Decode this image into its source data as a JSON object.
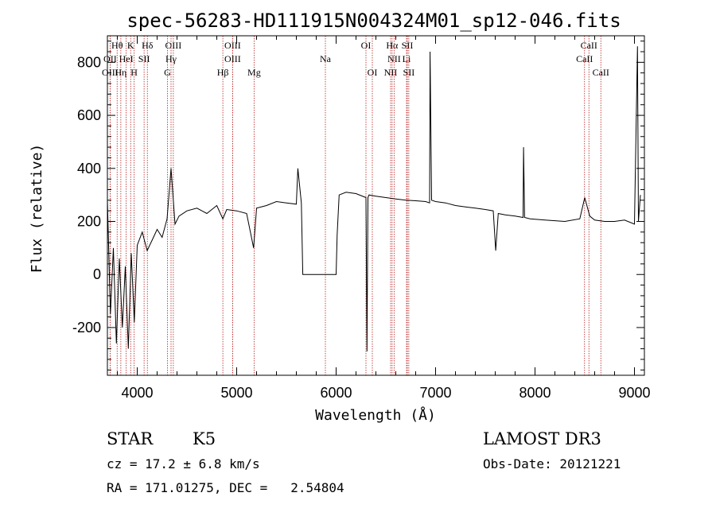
{
  "chart_data": {
    "type": "line",
    "title": "spec-56283-HD111915N004324M01_sp12-046.fits",
    "xlabel": "Wavelength (Å)",
    "ylabel": "Flux (relative)",
    "xlim": [
      3700,
      9100
    ],
    "ylim": [
      -380,
      900
    ],
    "xticks": [
      4000,
      5000,
      6000,
      7000,
      8000,
      9000
    ],
    "yticks": [
      -200,
      0,
      200,
      400,
      600,
      800
    ],
    "series": [
      {
        "name": "flux",
        "x": [
          3700,
          3730,
          3760,
          3790,
          3820,
          3850,
          3880,
          3910,
          3940,
          3970,
          4000,
          4050,
          4100,
          4150,
          4200,
          4250,
          4300,
          4340,
          4380,
          4420,
          4500,
          4600,
          4700,
          4800,
          4861,
          4900,
          5000,
          5100,
          5170,
          5200,
          5300,
          5400,
          5500,
          5600,
          5615,
          5650,
          5665,
          5680,
          6000,
          6010,
          6030,
          6100,
          6200,
          6300,
          6310,
          6320,
          6330,
          6400,
          6500,
          6600,
          6700,
          6800,
          6900,
          6940,
          6945,
          6960,
          7000,
          7100,
          7200,
          7300,
          7400,
          7500,
          7580,
          7605,
          7630,
          7700,
          7800,
          7880,
          7885,
          7895,
          7950,
          8100,
          8300,
          8450,
          8500,
          8550,
          8600,
          8700,
          8800,
          8900,
          9000,
          9030,
          9040,
          9060
        ],
        "y": [
          280,
          -150,
          100,
          -260,
          60,
          -200,
          30,
          -280,
          80,
          -180,
          110,
          160,
          90,
          130,
          170,
          140,
          210,
          400,
          190,
          220,
          240,
          250,
          230,
          260,
          210,
          245,
          240,
          230,
          100,
          250,
          260,
          275,
          270,
          265,
          400,
          270,
          0,
          0,
          0,
          150,
          300,
          310,
          305,
          290,
          -290,
          290,
          300,
          295,
          290,
          285,
          280,
          278,
          275,
          270,
          840,
          280,
          275,
          270,
          260,
          255,
          250,
          245,
          240,
          90,
          230,
          225,
          220,
          215,
          480,
          215,
          210,
          205,
          200,
          210,
          290,
          220,
          205,
          200,
          200,
          205,
          190,
          860,
          200,
          300
        ]
      }
    ],
    "spectral_lines": [
      {
        "label": "Hθ",
        "wavelength": 3798,
        "row": 1
      },
      {
        "label": "OII",
        "wavelength": 3727,
        "row": 2
      },
      {
        "label": "OIII",
        "wavelength": 3727,
        "row": 3
      },
      {
        "label": "K",
        "wavelength": 3934,
        "row": 1
      },
      {
        "label": "HeI",
        "wavelength": 3889,
        "row": 2
      },
      {
        "label": "Hη",
        "wavelength": 3835,
        "row": 3
      },
      {
        "label": "SII",
        "wavelength": 4069,
        "row": 2
      },
      {
        "label": "H",
        "wavelength": 3969,
        "row": 3
      },
      {
        "label": "Hδ",
        "wavelength": 4102,
        "row": 1
      },
      {
        "label": "OIII",
        "wavelength": 4363,
        "row": 1
      },
      {
        "label": "Hγ",
        "wavelength": 4340,
        "row": 2
      },
      {
        "label": "G",
        "wavelength": 4304,
        "row": 3
      },
      {
        "label": "OIII",
        "wavelength": 4959,
        "row": 1
      },
      {
        "label": "OIII",
        "wavelength": 4959,
        "row": 2
      },
      {
        "label": "Hβ",
        "wavelength": 4861,
        "row": 3
      },
      {
        "label": "Mg",
        "wavelength": 5175,
        "row": 3
      },
      {
        "label": "Na",
        "wavelength": 5892,
        "row": 2
      },
      {
        "label": "OI",
        "wavelength": 6300,
        "row": 1
      },
      {
        "label": "OI",
        "wavelength": 6364,
        "row": 3
      },
      {
        "label": "Hα",
        "wavelength": 6563,
        "row": 1
      },
      {
        "label": "SII",
        "wavelength": 6716,
        "row": 1
      },
      {
        "label": "NII",
        "wavelength": 6583,
        "row": 2
      },
      {
        "label": "Li",
        "wavelength": 6708,
        "row": 2
      },
      {
        "label": "NII",
        "wavelength": 6548,
        "row": 3
      },
      {
        "label": "SII",
        "wavelength": 6731,
        "row": 3
      },
      {
        "label": "CaII",
        "wavelength": 8542,
        "row": 1
      },
      {
        "label": "CaII",
        "wavelength": 8498,
        "row": 2
      },
      {
        "label": "CaII",
        "wavelength": 8662,
        "row": 3
      }
    ]
  },
  "info": {
    "class_label": "STAR",
    "subclass": "K5",
    "survey": "LAMOST DR3",
    "cz": "cz = 17.2 ± 6.8 km/s",
    "obs_date": "Obs-Date: 20121221",
    "coords": "RA = 171.01275, DEC =   2.54804"
  }
}
